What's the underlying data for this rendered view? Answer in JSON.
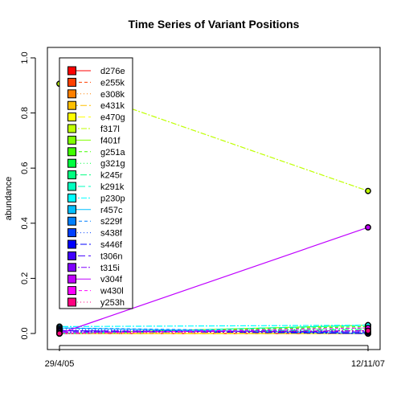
{
  "chart_data": {
    "type": "line",
    "title": "Time Series of Variant Positions",
    "xlabel": "",
    "ylabel": "abundance",
    "x": [
      "29/4/05",
      "12/11/07"
    ],
    "ylim": [
      0,
      1
    ],
    "y_ticks": [
      "0.0",
      "0.2",
      "0.4",
      "0.6",
      "0.8",
      "1.0"
    ],
    "grid": false,
    "legend_position": "top-left",
    "series": [
      {
        "name": "d276e",
        "color": "#FF0000",
        "values": [
          0.0,
          0.0
        ]
      },
      {
        "name": "e255k",
        "color": "#FF4000",
        "values": [
          0.0,
          0.0
        ]
      },
      {
        "name": "e308k",
        "color": "#FF8000",
        "values": [
          0.0,
          0.0
        ]
      },
      {
        "name": "e431k",
        "color": "#FFBF00",
        "values": [
          0.0,
          0.0
        ]
      },
      {
        "name": "e470g",
        "color": "#FFFF00",
        "values": [
          0.0,
          0.0
        ]
      },
      {
        "name": "f317l",
        "color": "#BFFF00",
        "values": [
          0.906,
          0.517
        ]
      },
      {
        "name": "f401f",
        "color": "#80FF00",
        "values": [
          0.0,
          0.03
        ]
      },
      {
        "name": "g251a",
        "color": "#40FF00",
        "values": [
          0.0,
          0.025
        ]
      },
      {
        "name": "g321g",
        "color": "#00FF40",
        "values": [
          0.0,
          0.02
        ]
      },
      {
        "name": "k245r",
        "color": "#00FF80",
        "values": [
          0.0,
          0.015
        ]
      },
      {
        "name": "k291k",
        "color": "#00FFBF",
        "values": [
          0.0,
          0.03
        ]
      },
      {
        "name": "p230p",
        "color": "#00FFFF",
        "values": [
          0.025,
          0.03
        ]
      },
      {
        "name": "r457c",
        "color": "#00BFFF",
        "values": [
          0.02,
          0.0
        ]
      },
      {
        "name": "s229f",
        "color": "#0080FF",
        "values": [
          0.02,
          0.005
        ]
      },
      {
        "name": "s438f",
        "color": "#0040FF",
        "values": [
          0.015,
          0.0
        ]
      },
      {
        "name": "s446f",
        "color": "#0000FF",
        "values": [
          0.01,
          0.0
        ]
      },
      {
        "name": "t306n",
        "color": "#4000FF",
        "values": [
          0.01,
          0.005
        ]
      },
      {
        "name": "t315i",
        "color": "#8000FF",
        "values": [
          0.005,
          0.01
        ]
      },
      {
        "name": "v304f",
        "color": "#BF00FF",
        "values": [
          0.0,
          0.385
        ]
      },
      {
        "name": "w430l",
        "color": "#FF00FF",
        "values": [
          0.0,
          0.02
        ]
      },
      {
        "name": "y253h",
        "color": "#FF0080",
        "values": [
          0.0,
          0.01
        ]
      }
    ]
  }
}
